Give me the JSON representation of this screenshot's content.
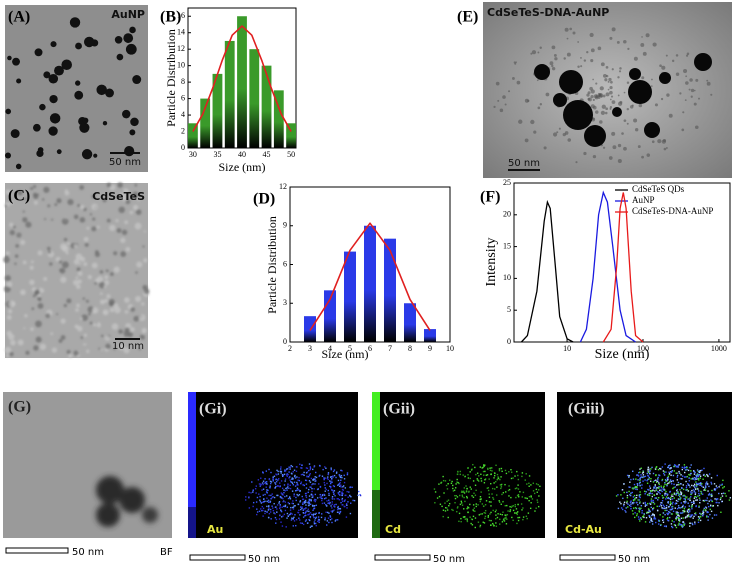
{
  "panels": {
    "A": {
      "label": "(A)",
      "tag": "AuNP",
      "scale": "50 nm"
    },
    "C": {
      "label": "(C)",
      "tag": "CdSeTeS",
      "scale": "10 nm"
    },
    "E": {
      "label": "(E)",
      "tag": "CdSeTeS-DNA-AuNP",
      "scale": "50 nm"
    },
    "G": {
      "label": "(G)",
      "tag": "BF",
      "scale": "50 nm"
    },
    "Gi": {
      "label": "(Gi)",
      "tag": "Au",
      "scale": "50 nm"
    },
    "Gii": {
      "label": "(Gii)",
      "tag": "Cd",
      "scale": "50 nm"
    },
    "Giii": {
      "label": "(Giii)",
      "tag": "Cd-Au",
      "scale": "50 nm"
    }
  },
  "chart_data": [
    {
      "type": "bar",
      "title": "(B)",
      "xlabel": "Size (nm)",
      "ylabel": "Particle Distribution",
      "x": [
        30,
        32.5,
        35,
        37.5,
        40,
        42.5,
        45,
        47.5,
        50
      ],
      "values": [
        3,
        6,
        9,
        13,
        16,
        12,
        10,
        7,
        3
      ],
      "color": "#3a9a2a",
      "bar_width": 2,
      "fit": {
        "x": [
          30,
          32,
          34,
          36,
          38,
          40,
          42,
          44,
          46,
          48,
          50
        ],
        "values": [
          2.0,
          4.1,
          7.2,
          10.7,
          13.7,
          14.8,
          13.7,
          10.7,
          7.2,
          4.1,
          2.0
        ],
        "color": "#e02020"
      },
      "xlim": [
        29,
        51
      ],
      "xticks": [
        30,
        35,
        40,
        45,
        50
      ],
      "ylim": [
        0,
        17
      ],
      "yticks": [
        0,
        2,
        4,
        6,
        8,
        10,
        12,
        14,
        16
      ]
    },
    {
      "type": "bar",
      "title": "(D)",
      "xlabel": "Size (nm)",
      "ylabel": "Particle Distribution",
      "x": [
        3,
        4,
        5,
        6,
        7,
        8,
        9
      ],
      "values": [
        2,
        4,
        7,
        9,
        8,
        3,
        1
      ],
      "color": "#2a3ae8",
      "bar_width": 0.6,
      "fit": {
        "x": [
          3,
          4,
          5,
          6,
          7,
          8,
          9
        ],
        "values": [
          0.9,
          3.3,
          7.1,
          9.2,
          7.1,
          3.3,
          0.9
        ],
        "color": "#e02020"
      },
      "xlim": [
        2,
        10
      ],
      "xticks": [
        2,
        3,
        4,
        5,
        6,
        7,
        8,
        9,
        10
      ],
      "ylim": [
        0,
        12
      ],
      "yticks": [
        0,
        3,
        6,
        9,
        12
      ]
    },
    {
      "type": "line",
      "title": "(F)",
      "xlabel": "Size (nm)",
      "ylabel": "Intensity",
      "log_x": true,
      "series": [
        {
          "name": "CdSeTeS QDs",
          "color": "#000000",
          "x": [
            2.5,
            3,
            4,
            5,
            5.5,
            6,
            7,
            8,
            10,
            12
          ],
          "values": [
            0,
            1,
            8,
            19,
            22,
            21,
            12,
            4,
            0.5,
            0
          ]
        },
        {
          "name": "AuNP",
          "color": "#1a1ae0",
          "x": [
            15,
            18,
            22,
            26,
            30,
            34,
            40,
            50,
            60,
            80
          ],
          "values": [
            0,
            2,
            10,
            20,
            23.5,
            22,
            15,
            5,
            1,
            0
          ]
        },
        {
          "name": "CdSeTeS-DNA-AuNP",
          "color": "#e81a1a",
          "x": [
            30,
            38,
            45,
            50,
            55,
            60,
            70,
            80,
            100
          ],
          "values": [
            0,
            2,
            12,
            21,
            23.5,
            21,
            8,
            1,
            0
          ]
        }
      ],
      "xlim": [
        2,
        1400
      ],
      "xticks": [
        10,
        100,
        1000
      ],
      "ylim": [
        0,
        25
      ],
      "yticks": [
        0,
        5,
        10,
        15,
        20,
        25
      ],
      "legend": "upper right"
    }
  ]
}
